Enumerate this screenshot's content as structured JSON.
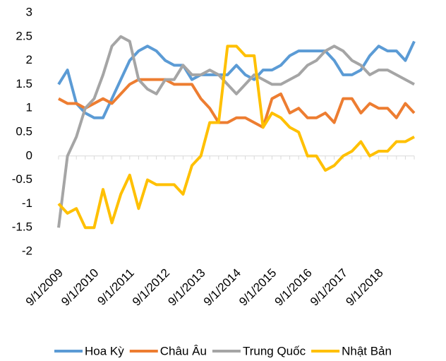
{
  "chart_data": {
    "type": "line",
    "categories": [
      "9/1/2009",
      null,
      null,
      null,
      "9/1/2010",
      null,
      null,
      null,
      "9/1/2011",
      null,
      null,
      null,
      "9/1/2012",
      null,
      null,
      null,
      "9/1/2013",
      null,
      null,
      null,
      "9/1/2014",
      null,
      null,
      null,
      "9/1/2015",
      null,
      null,
      null,
      "9/1/2016",
      null,
      null,
      null,
      "9/1/2017",
      null,
      null,
      null,
      "9/1/2018",
      null,
      null,
      null,
      null
    ],
    "series": [
      {
        "name": "Hoa Kỳ",
        "color": "#5b9bd5",
        "values": [
          1.5,
          1.8,
          1.1,
          0.9,
          0.8,
          0.8,
          1.2,
          1.6,
          2.0,
          2.2,
          2.3,
          2.2,
          2.0,
          1.9,
          1.9,
          1.6,
          1.7,
          1.7,
          1.7,
          1.7,
          1.9,
          1.7,
          1.6,
          1.8,
          1.8,
          1.9,
          2.1,
          2.2,
          2.2,
          2.2,
          2.2,
          2.0,
          1.7,
          1.7,
          1.8,
          2.1,
          2.3,
          2.2,
          2.2,
          2.0,
          2.4
        ]
      },
      {
        "name": "Châu Âu",
        "color": "#ed7d31",
        "values": [
          1.2,
          1.1,
          1.1,
          1.0,
          1.1,
          1.2,
          1.1,
          1.3,
          1.5,
          1.6,
          1.6,
          1.6,
          1.6,
          1.5,
          1.5,
          1.5,
          1.2,
          1.0,
          0.7,
          0.7,
          0.8,
          0.8,
          0.7,
          0.6,
          1.2,
          1.3,
          0.9,
          1.0,
          0.8,
          0.8,
          0.9,
          0.7,
          1.2,
          1.2,
          0.9,
          1.1,
          1.0,
          1.0,
          0.8,
          1.1,
          0.9
        ]
      },
      {
        "name": "Trung Quốc",
        "color": "#a5a5a5",
        "values": [
          -1.5,
          0.0,
          0.4,
          1.0,
          1.2,
          1.7,
          2.3,
          2.5,
          2.4,
          1.6,
          1.4,
          1.3,
          1.6,
          1.6,
          1.9,
          1.7,
          1.7,
          1.8,
          1.7,
          1.5,
          1.3,
          1.5,
          1.7,
          1.6,
          1.5,
          1.5,
          1.6,
          1.7,
          1.9,
          2.0,
          2.2,
          2.3,
          2.2,
          2.0,
          1.9,
          1.7,
          1.8,
          1.8,
          1.7,
          1.6,
          1.5
        ]
      },
      {
        "name": "Nhật Bản",
        "color": "#ffc000",
        "values": [
          -1.0,
          -1.2,
          -1.1,
          -1.5,
          -1.5,
          -0.7,
          -1.4,
          -0.8,
          -0.4,
          -1.1,
          -0.5,
          -0.6,
          -0.6,
          -0.6,
          -0.8,
          -0.2,
          0.0,
          0.7,
          0.7,
          2.3,
          2.3,
          2.1,
          2.1,
          0.6,
          0.9,
          0.8,
          0.6,
          0.5,
          0.0,
          0.0,
          -0.3,
          -0.2,
          0.0,
          0.1,
          0.3,
          0.0,
          0.1,
          0.1,
          0.3,
          0.3,
          0.4
        ]
      }
    ],
    "ylim": [
      -2,
      3
    ],
    "yticks": [
      -2,
      -1.5,
      -1,
      -0.5,
      0,
      0.5,
      1,
      1.5,
      2,
      2.5,
      3
    ],
    "legend": "bottom"
  }
}
